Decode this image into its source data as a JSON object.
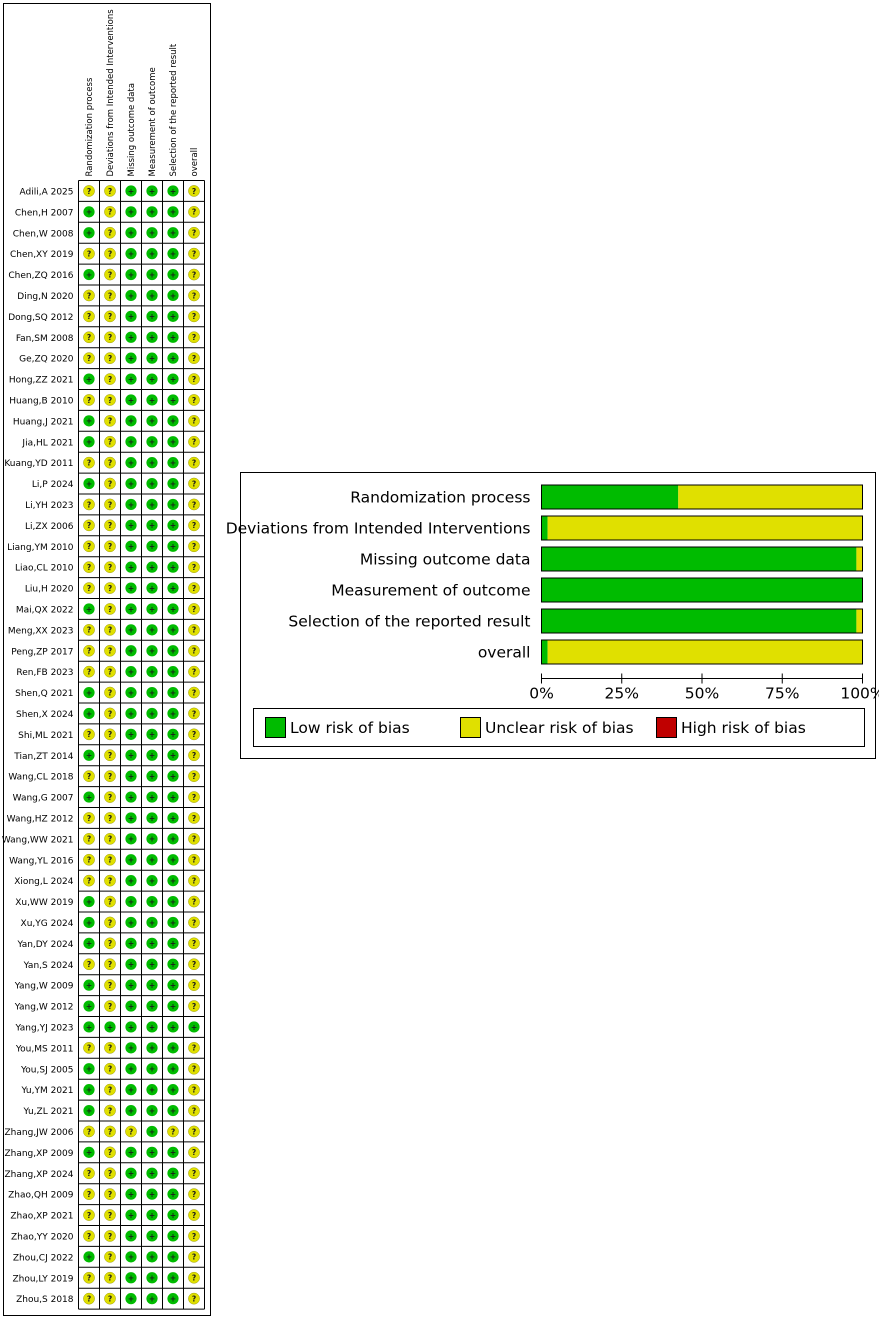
{
  "colors": {
    "low": "#00bb00",
    "unclear": "#e0e000",
    "high": "#c00000"
  },
  "symbols": {
    "low": "+",
    "unclear": "?",
    "high": "-"
  },
  "chart_data": [
    {
      "type": "table",
      "columns": [
        "Randomization process",
        "Deviations from Intended Interventions",
        "Missing outcome data",
        "Measurement of outcome",
        "Selection of the reported result",
        "overall"
      ],
      "rows": [
        {
          "study": "Adili,A 2025",
          "ratings": [
            "unclear",
            "unclear",
            "low",
            "low",
            "low",
            "unclear"
          ]
        },
        {
          "study": "Chen,H 2007",
          "ratings": [
            "low",
            "unclear",
            "low",
            "low",
            "low",
            "unclear"
          ]
        },
        {
          "study": "Chen,W 2008",
          "ratings": [
            "low",
            "unclear",
            "low",
            "low",
            "low",
            "unclear"
          ]
        },
        {
          "study": "Chen,XY 2019",
          "ratings": [
            "unclear",
            "unclear",
            "low",
            "low",
            "low",
            "unclear"
          ]
        },
        {
          "study": "Chen,ZQ 2016",
          "ratings": [
            "low",
            "unclear",
            "low",
            "low",
            "low",
            "unclear"
          ]
        },
        {
          "study": "Ding,N 2020",
          "ratings": [
            "unclear",
            "unclear",
            "low",
            "low",
            "low",
            "unclear"
          ]
        },
        {
          "study": "Dong,SQ 2012",
          "ratings": [
            "unclear",
            "unclear",
            "low",
            "low",
            "low",
            "unclear"
          ]
        },
        {
          "study": "Fan,SM 2008",
          "ratings": [
            "unclear",
            "unclear",
            "low",
            "low",
            "low",
            "unclear"
          ]
        },
        {
          "study": "Ge,ZQ 2020",
          "ratings": [
            "unclear",
            "unclear",
            "low",
            "low",
            "low",
            "unclear"
          ]
        },
        {
          "study": "Hong,ZZ 2021",
          "ratings": [
            "low",
            "unclear",
            "low",
            "low",
            "low",
            "unclear"
          ]
        },
        {
          "study": "Huang,B 2010",
          "ratings": [
            "unclear",
            "unclear",
            "low",
            "low",
            "low",
            "unclear"
          ]
        },
        {
          "study": "Huang,J 2021",
          "ratings": [
            "low",
            "unclear",
            "low",
            "low",
            "low",
            "unclear"
          ]
        },
        {
          "study": "Jia,HL 2021",
          "ratings": [
            "low",
            "unclear",
            "low",
            "low",
            "low",
            "unclear"
          ]
        },
        {
          "study": "Kuang,YD 2011",
          "ratings": [
            "unclear",
            "unclear",
            "low",
            "low",
            "low",
            "unclear"
          ]
        },
        {
          "study": "Li,P 2024",
          "ratings": [
            "low",
            "unclear",
            "low",
            "low",
            "low",
            "unclear"
          ]
        },
        {
          "study": "Li,YH 2023",
          "ratings": [
            "unclear",
            "unclear",
            "low",
            "low",
            "low",
            "unclear"
          ]
        },
        {
          "study": "Li,ZX 2006",
          "ratings": [
            "unclear",
            "unclear",
            "low",
            "low",
            "low",
            "unclear"
          ]
        },
        {
          "study": "Liang,YM 2010",
          "ratings": [
            "unclear",
            "unclear",
            "low",
            "low",
            "low",
            "unclear"
          ]
        },
        {
          "study": "Liao,CL 2010",
          "ratings": [
            "unclear",
            "unclear",
            "low",
            "low",
            "low",
            "unclear"
          ]
        },
        {
          "study": "Liu,H 2020",
          "ratings": [
            "unclear",
            "unclear",
            "low",
            "low",
            "low",
            "unclear"
          ]
        },
        {
          "study": "Mai,QX 2022",
          "ratings": [
            "low",
            "unclear",
            "low",
            "low",
            "low",
            "unclear"
          ]
        },
        {
          "study": "Meng,XX 2023",
          "ratings": [
            "unclear",
            "unclear",
            "low",
            "low",
            "low",
            "unclear"
          ]
        },
        {
          "study": "Peng,ZP 2017",
          "ratings": [
            "unclear",
            "unclear",
            "low",
            "low",
            "low",
            "unclear"
          ]
        },
        {
          "study": "Ren,FB 2023",
          "ratings": [
            "unclear",
            "unclear",
            "low",
            "low",
            "low",
            "unclear"
          ]
        },
        {
          "study": "Shen,Q 2021",
          "ratings": [
            "low",
            "unclear",
            "low",
            "low",
            "low",
            "unclear"
          ]
        },
        {
          "study": "Shen,X 2024",
          "ratings": [
            "low",
            "unclear",
            "low",
            "low",
            "low",
            "unclear"
          ]
        },
        {
          "study": "Shi,ML 2021",
          "ratings": [
            "unclear",
            "unclear",
            "low",
            "low",
            "low",
            "unclear"
          ]
        },
        {
          "study": "Tian,ZT 2014",
          "ratings": [
            "low",
            "unclear",
            "low",
            "low",
            "low",
            "unclear"
          ]
        },
        {
          "study": "Wang,CL 2018",
          "ratings": [
            "unclear",
            "unclear",
            "low",
            "low",
            "low",
            "unclear"
          ]
        },
        {
          "study": "Wang,G 2007",
          "ratings": [
            "low",
            "unclear",
            "low",
            "low",
            "low",
            "unclear"
          ]
        },
        {
          "study": "Wang,HZ 2012",
          "ratings": [
            "unclear",
            "unclear",
            "low",
            "low",
            "low",
            "unclear"
          ]
        },
        {
          "study": "Wang,WW 2021",
          "ratings": [
            "unclear",
            "unclear",
            "low",
            "low",
            "low",
            "unclear"
          ]
        },
        {
          "study": "Wang,YL 2016",
          "ratings": [
            "unclear",
            "unclear",
            "low",
            "low",
            "low",
            "unclear"
          ]
        },
        {
          "study": "Xiong,L 2024",
          "ratings": [
            "unclear",
            "unclear",
            "low",
            "low",
            "low",
            "unclear"
          ]
        },
        {
          "study": "Xu,WW 2019",
          "ratings": [
            "low",
            "unclear",
            "low",
            "low",
            "low",
            "unclear"
          ]
        },
        {
          "study": "Xu,YG 2024",
          "ratings": [
            "low",
            "unclear",
            "low",
            "low",
            "low",
            "unclear"
          ]
        },
        {
          "study": "Yan,DY 2024",
          "ratings": [
            "low",
            "unclear",
            "low",
            "low",
            "low",
            "unclear"
          ]
        },
        {
          "study": "Yan,S 2024",
          "ratings": [
            "unclear",
            "unclear",
            "low",
            "low",
            "low",
            "unclear"
          ]
        },
        {
          "study": "Yang,W 2009",
          "ratings": [
            "low",
            "unclear",
            "low",
            "low",
            "low",
            "unclear"
          ]
        },
        {
          "study": "Yang,W 2012",
          "ratings": [
            "low",
            "unclear",
            "low",
            "low",
            "low",
            "unclear"
          ]
        },
        {
          "study": "Yang,YJ 2023",
          "ratings": [
            "low",
            "low",
            "low",
            "low",
            "low",
            "low"
          ]
        },
        {
          "study": "You,MS 2011",
          "ratings": [
            "unclear",
            "unclear",
            "low",
            "low",
            "low",
            "unclear"
          ]
        },
        {
          "study": "You,SJ 2005",
          "ratings": [
            "low",
            "unclear",
            "low",
            "low",
            "low",
            "unclear"
          ]
        },
        {
          "study": "Yu,YM 2021",
          "ratings": [
            "low",
            "unclear",
            "low",
            "low",
            "low",
            "unclear"
          ]
        },
        {
          "study": "Yu,ZL 2021",
          "ratings": [
            "low",
            "unclear",
            "low",
            "low",
            "low",
            "unclear"
          ]
        },
        {
          "study": "Zhang,JW 2006",
          "ratings": [
            "unclear",
            "unclear",
            "unclear",
            "low",
            "unclear",
            "unclear"
          ]
        },
        {
          "study": "Zhang,XP 2009",
          "ratings": [
            "low",
            "unclear",
            "low",
            "low",
            "low",
            "unclear"
          ]
        },
        {
          "study": "Zhang,XP 2024",
          "ratings": [
            "unclear",
            "unclear",
            "low",
            "low",
            "low",
            "unclear"
          ]
        },
        {
          "study": "Zhao,QH 2009",
          "ratings": [
            "unclear",
            "unclear",
            "low",
            "low",
            "low",
            "unclear"
          ]
        },
        {
          "study": "Zhao,XP 2021",
          "ratings": [
            "unclear",
            "unclear",
            "low",
            "low",
            "low",
            "unclear"
          ]
        },
        {
          "study": "Zhao,YY 2020",
          "ratings": [
            "unclear",
            "unclear",
            "low",
            "low",
            "low",
            "unclear"
          ]
        },
        {
          "study": "Zhou,CJ 2022",
          "ratings": [
            "low",
            "unclear",
            "low",
            "low",
            "low",
            "unclear"
          ]
        },
        {
          "study": "Zhou,LY 2019",
          "ratings": [
            "unclear",
            "unclear",
            "low",
            "low",
            "low",
            "unclear"
          ]
        },
        {
          "study": "Zhou,S 2018",
          "ratings": [
            "unclear",
            "unclear",
            "low",
            "low",
            "low",
            "unclear"
          ]
        }
      ]
    },
    {
      "type": "bar",
      "orientation": "horizontal",
      "stacked": true,
      "categories": [
        "Randomization process",
        "Deviations from Intended Interventions",
        "Missing outcome data",
        "Measurement of outcome",
        "Selection of the reported result",
        "overall"
      ],
      "series": [
        {
          "name": "Low risk of bias",
          "color_key": "low",
          "values": [
            42.6,
            1.9,
            98.1,
            100,
            98.1,
            1.9
          ]
        },
        {
          "name": "Unclear risk of bias",
          "color_key": "unclear",
          "values": [
            57.4,
            98.1,
            1.9,
            0,
            1.9,
            98.1
          ]
        },
        {
          "name": "High risk of bias",
          "color_key": "high",
          "values": [
            0,
            0,
            0,
            0,
            0,
            0
          ]
        }
      ],
      "xlim": [
        0,
        100
      ],
      "x_ticks": [
        "0%",
        "25%",
        "50%",
        "75%",
        "100%"
      ],
      "legend_position": "bottom"
    }
  ]
}
